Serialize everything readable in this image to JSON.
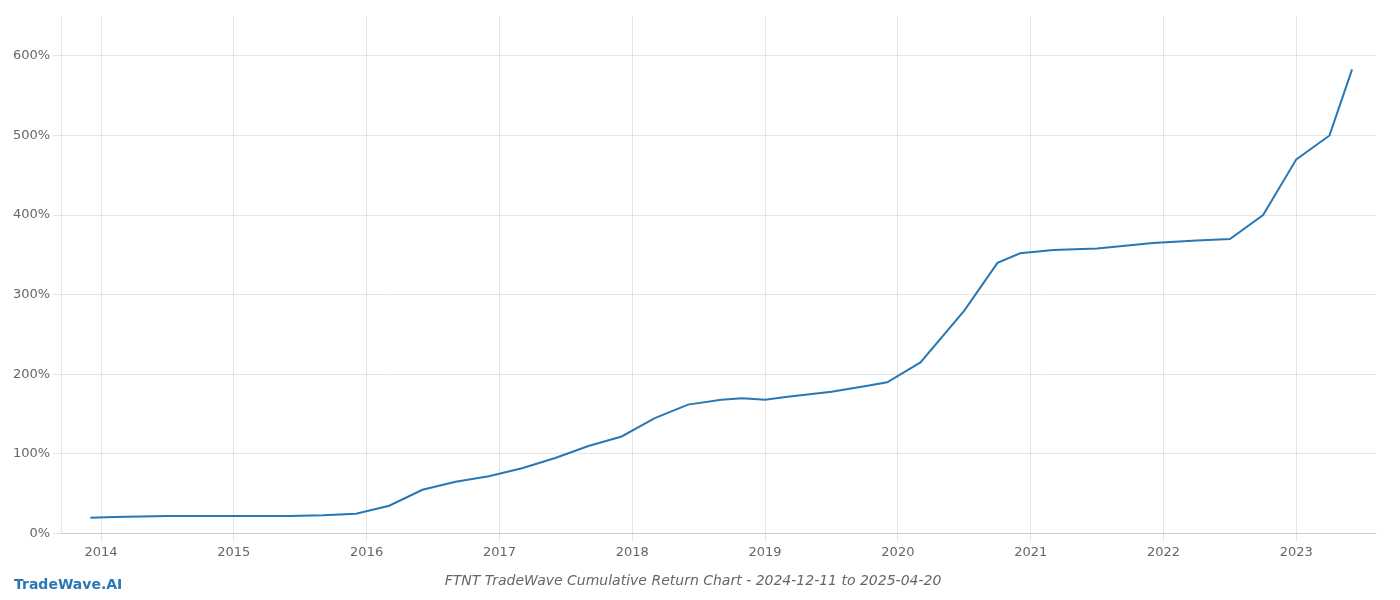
{
  "chart_data": {
    "type": "line",
    "title": "FTNT TradeWave Cumulative Return Chart - 2024-12-11 to 2025-04-20",
    "annotations": [
      "TradeWave.AI"
    ],
    "x": [
      2013.92,
      2014.1,
      2014.5,
      2014.83,
      2015.0,
      2015.17,
      2015.42,
      2015.67,
      2015.92,
      2016.17,
      2016.42,
      2016.67,
      2016.92,
      2017.17,
      2017.42,
      2017.67,
      2017.92,
      2018.17,
      2018.42,
      2018.67,
      2018.83,
      2019.0,
      2019.17,
      2019.5,
      2019.75,
      2019.92,
      2020.17,
      2020.5,
      2020.75,
      2020.92,
      2021.17,
      2021.5,
      2021.75,
      2021.92,
      2022.25,
      2022.5,
      2022.75,
      2023.0,
      2023.25,
      2023.42
    ],
    "values": [
      20,
      21,
      22,
      22,
      22,
      22,
      22,
      23,
      25,
      35,
      55,
      65,
      72,
      82,
      95,
      110,
      122,
      145,
      162,
      168,
      170,
      168,
      172,
      178,
      185,
      190,
      215,
      280,
      340,
      352,
      356,
      358,
      362,
      365,
      368,
      370,
      400,
      470,
      500,
      583
    ],
    "color": "#2878b5",
    "xlim": [
      2013.7,
      2023.6
    ],
    "xticks": [
      2014,
      2015,
      2016,
      2017,
      2018,
      2019,
      2020,
      2021,
      2022,
      2023
    ],
    "ylim": [
      0,
      650
    ],
    "yticks": [
      {
        "value": 0,
        "label": "0%"
      },
      {
        "value": 100,
        "label": "100%"
      },
      {
        "value": 200,
        "label": "200%"
      },
      {
        "value": 300,
        "label": "300%"
      },
      {
        "value": 400,
        "label": "400%"
      },
      {
        "value": 500,
        "label": "500%"
      },
      {
        "value": 600,
        "label": "600%"
      }
    ],
    "grid": true
  }
}
